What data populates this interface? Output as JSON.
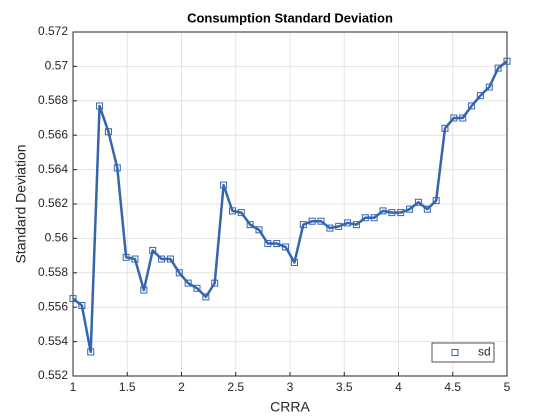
{
  "chart_data": {
    "type": "line",
    "title": "Consumption Standard Deviation",
    "x_label": "CRRA",
    "y_label": "Standard Deviation",
    "x": [
      1,
      1.0816,
      1.1633,
      1.2449,
      1.3265,
      1.4082,
      1.4898,
      1.5714,
      1.6531,
      1.7347,
      1.8163,
      1.898,
      1.9796,
      2.0612,
      2.1429,
      2.2245,
      2.3061,
      2.3878,
      2.4694,
      2.551,
      2.6327,
      2.7143,
      2.7959,
      2.8776,
      2.9592,
      3.0408,
      3.1224,
      3.2041,
      3.2857,
      3.3673,
      3.449,
      3.5306,
      3.6122,
      3.6939,
      3.7755,
      3.8571,
      3.9388,
      4.0204,
      4.102,
      4.1837,
      4.2653,
      4.3469,
      4.4286,
      4.5102,
      4.5918,
      4.6735,
      4.7551,
      4.8367,
      4.9184,
      5
    ],
    "series": [
      {
        "name": "sd",
        "color": "#3465ad",
        "marker": "square",
        "values": [
          0.5565,
          0.5561,
          0.5534,
          0.5677,
          0.5662,
          0.5641,
          0.5589,
          0.5588,
          0.557,
          0.5593,
          0.5588,
          0.5588,
          0.558,
          0.5574,
          0.5571,
          0.5566,
          0.5574,
          0.5631,
          0.5616,
          0.5615,
          0.5608,
          0.5605,
          0.5597,
          0.5597,
          0.5595,
          0.5586,
          0.5608,
          0.561,
          0.561,
          0.5606,
          0.5607,
          0.5609,
          0.5608,
          0.5612,
          0.5612,
          0.5616,
          0.5615,
          0.5615,
          0.5617,
          0.5621,
          0.5617,
          0.5622,
          0.5664,
          0.567,
          0.567,
          0.5677,
          0.5683,
          0.5688,
          0.5699,
          0.5703
        ]
      }
    ],
    "xlim": [
      1,
      5
    ],
    "ylim": [
      0.552,
      0.572
    ],
    "xticks": [
      1,
      1.5,
      2,
      2.5,
      3,
      3.5,
      4,
      4.5,
      5
    ],
    "yticks": [
      0.552,
      0.554,
      0.556,
      0.558,
      0.56,
      0.562,
      0.564,
      0.566,
      0.568,
      0.57,
      0.572
    ],
    "grid": true,
    "legend_position": "southeast"
  }
}
